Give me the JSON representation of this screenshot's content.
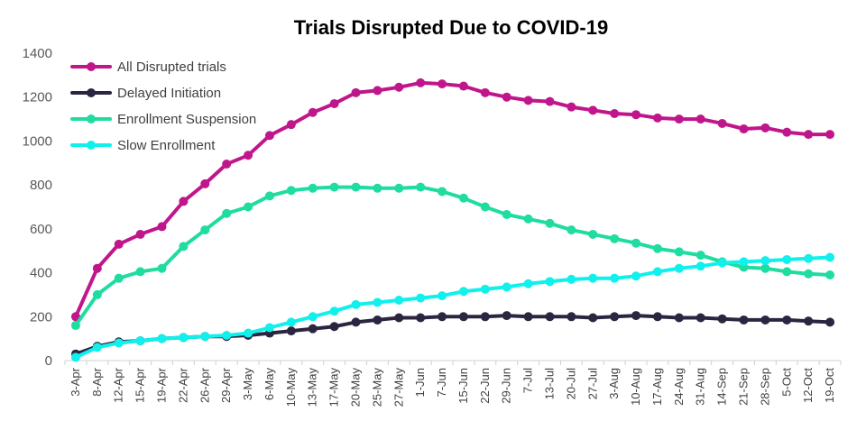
{
  "chart_data": {
    "type": "line",
    "title": "Trials Disrupted Due to COVID-19",
    "xlabel": "",
    "ylabel": "",
    "ylim": [
      0,
      1400
    ],
    "yticks": [
      0,
      200,
      400,
      600,
      800,
      1000,
      1200,
      1400
    ],
    "grid": false,
    "legend_position": "top-left",
    "categories": [
      "3-Apr",
      "8-Apr",
      "12-Apr",
      "15-Apr",
      "19-Apr",
      "22-Apr",
      "26-Apr",
      "29-Apr",
      "3-May",
      "6-May",
      "10-May",
      "13-May",
      "17-May",
      "20-May",
      "25-May",
      "27-May",
      "1-Jun",
      "7-Jun",
      "15-Jun",
      "22-Jun",
      "29-Jun",
      "7-Jul",
      "13-Jul",
      "20-Jul",
      "27-Jul",
      "3-Aug",
      "10-Aug",
      "17-Aug",
      "24-Aug",
      "31-Aug",
      "14-Sep",
      "21-Sep",
      "28-Sep",
      "5-Oct",
      "12-Oct",
      "19-Oct"
    ],
    "series": [
      {
        "name": "All Disrupted trials",
        "color": "#c0168c",
        "values": [
          200,
          420,
          530,
          575,
          610,
          725,
          805,
          895,
          935,
          1025,
          1075,
          1130,
          1170,
          1220,
          1230,
          1245,
          1265,
          1260,
          1250,
          1220,
          1200,
          1185,
          1180,
          1155,
          1140,
          1125,
          1120,
          1105,
          1100,
          1100,
          1080,
          1055,
          1060,
          1040,
          1030,
          1030
        ]
      },
      {
        "name": "Delayed Initiation",
        "color": "#2b2540",
        "values": [
          30,
          65,
          85,
          90,
          100,
          105,
          110,
          110,
          115,
          125,
          135,
          145,
          155,
          175,
          185,
          195,
          195,
          200,
          200,
          200,
          205,
          200,
          200,
          200,
          195,
          200,
          205,
          200,
          195,
          195,
          190,
          185,
          185,
          185,
          180,
          175
        ]
      },
      {
        "name": "Enrollment Suspension",
        "color": "#1fdca0",
        "values": [
          160,
          300,
          375,
          405,
          420,
          520,
          595,
          670,
          700,
          750,
          775,
          785,
          790,
          790,
          785,
          785,
          790,
          770,
          740,
          700,
          665,
          645,
          625,
          595,
          575,
          555,
          535,
          510,
          495,
          480,
          450,
          425,
          420,
          405,
          395,
          390
        ]
      },
      {
        "name": "Slow Enrollment",
        "color": "#10f0ec",
        "values": [
          15,
          60,
          80,
          90,
          100,
          105,
          110,
          115,
          125,
          150,
          175,
          200,
          225,
          255,
          265,
          275,
          285,
          295,
          315,
          325,
          335,
          350,
          360,
          370,
          375,
          375,
          385,
          405,
          420,
          430,
          445,
          450,
          455,
          460,
          465,
          470
        ]
      }
    ]
  }
}
